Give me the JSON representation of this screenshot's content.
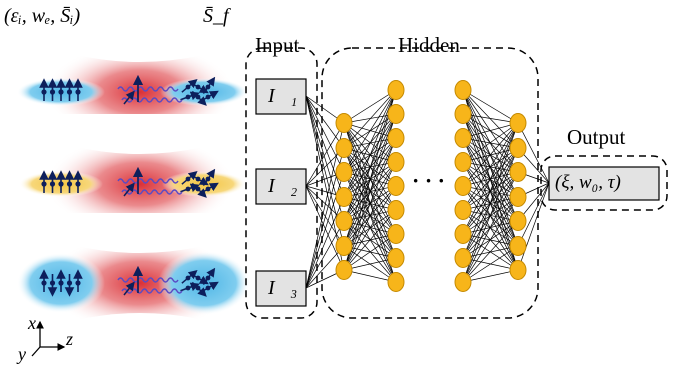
{
  "header": {
    "initial_params": "(εᵢ, wₑ, S̄ᵢ)",
    "final_spin": "S̄_f"
  },
  "network": {
    "input_label": "Input",
    "hidden_label": "Hidden",
    "output_label": "Output",
    "inputs": [
      "I⃗₁",
      "I⃗₂",
      "I⃗₃"
    ],
    "input_subscripts": [
      "1",
      "2",
      "3"
    ],
    "ellipsis": "· · ·",
    "output_box": "(ξ, w₀, τ)"
  },
  "axes": {
    "x": "x",
    "y": "y",
    "z": "z"
  },
  "colors": {
    "laser_red": "#d8242b",
    "beam_blue": "#4fb6e6",
    "beam_yellow": "#f4c542",
    "neuron_fill": "#f7b51a",
    "neuron_stroke": "#c58a00",
    "spin_arrow": "#0d1f5c",
    "photon_wave": "#5a4bc4",
    "box_fill": "#e3e3e3"
  }
}
